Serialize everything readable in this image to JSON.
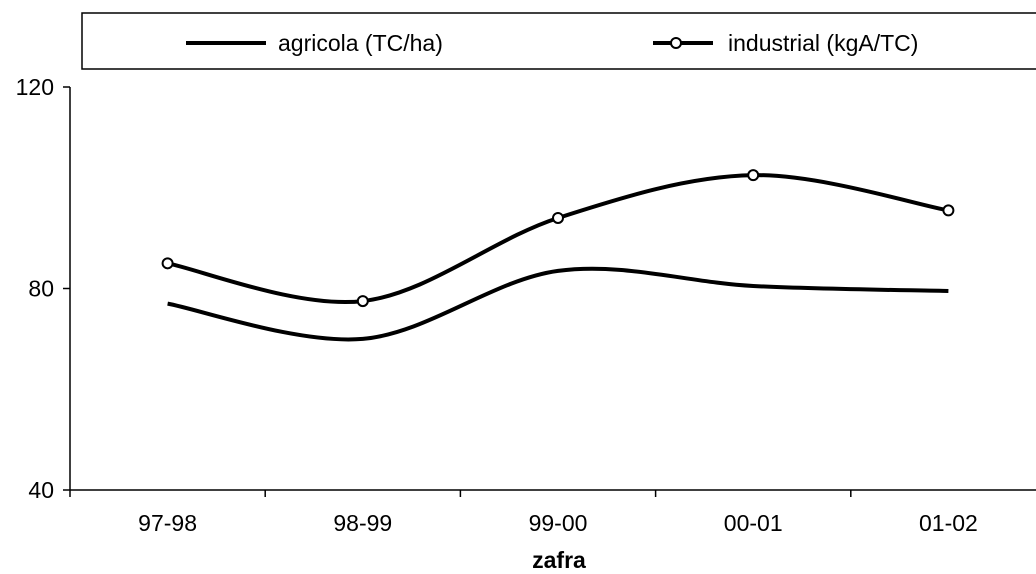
{
  "chart_data": {
    "type": "line",
    "title": "",
    "xlabel": "zafra",
    "ylabel": "",
    "categories": [
      "97-98",
      "98-99",
      "99-00",
      "00-01",
      "01-02"
    ],
    "ylim": [
      40,
      120
    ],
    "yticks": [
      40,
      80,
      120
    ],
    "grid": false,
    "smooth": true,
    "legend": "top",
    "series": [
      {
        "name": "agricola (TC/ha)",
        "values": [
          77,
          70,
          83.5,
          80.5,
          79.5
        ],
        "marker": "none",
        "color": "#000000"
      },
      {
        "name": "industrial (kgA/TC)",
        "values": [
          85,
          77.5,
          94,
          102.5,
          95.5
        ],
        "marker": "open-circle",
        "color": "#000000"
      }
    ]
  }
}
